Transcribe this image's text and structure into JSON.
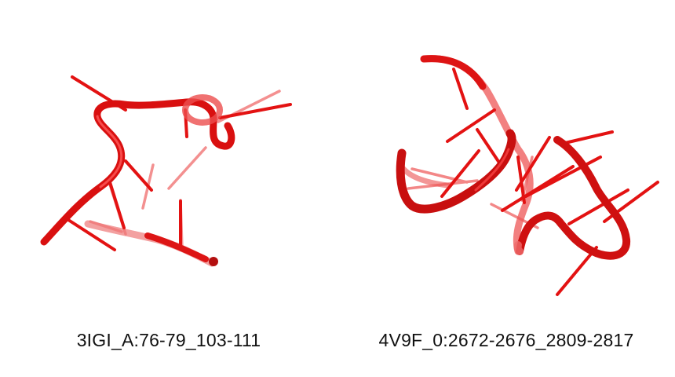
{
  "structures": [
    {
      "label": "3IGI_A:76-79_103-111",
      "color": "#e01010"
    },
    {
      "label": "4V9F_0:2672-2676_2809-2817",
      "color": "#e01010"
    }
  ]
}
